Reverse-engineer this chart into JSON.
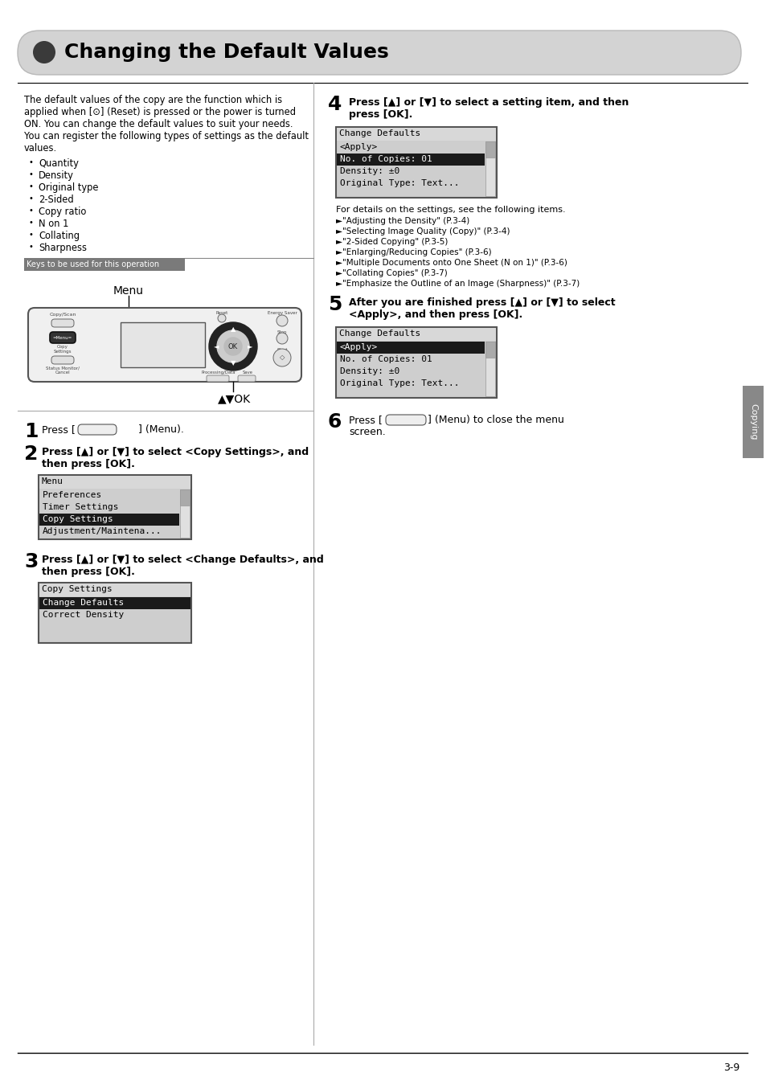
{
  "title": "Changing the Default Values",
  "bg_color": "#ffffff",
  "page_number": "3-9",
  "sidebar_label": "Copying",
  "intro_text": [
    "The default values of the copy are the function which is",
    "applied when [⊙] (Reset) is pressed or the power is turned",
    "ON. You can change the default values to suit your needs.",
    "You can register the following types of settings as the default",
    "values."
  ],
  "bullet_items": [
    "Quantity",
    "Density",
    "Original type",
    "2-Sided",
    "Copy ratio",
    "N on 1",
    "Collating",
    "Sharpness"
  ],
  "keys_label": "Keys to be used for this operation",
  "menu_screen1_title": "Menu",
  "menu_screen1_items": [
    "Preferences",
    "Timer Settings",
    "Copy Settings",
    "Adjustment/Maintena..."
  ],
  "menu_screen1_selected": 2,
  "menu_screen2_title": "Copy Settings",
  "menu_screen2_items": [
    "Change Defaults",
    "Correct Density"
  ],
  "menu_screen2_selected": 0,
  "step4_text_line1": "Press [▲] or [▼] to select a setting item, and then",
  "step4_text_line2": "press [OK].",
  "screen3_title": "Change Defaults",
  "screen3_items": [
    "<Apply>",
    "No. of Copies: 01",
    "Density: ±0",
    "Original Type: Text..."
  ],
  "screen3_selected": 1,
  "step4_note": "For details on the settings, see the following items.",
  "step4_refs": [
    "►\"Adjusting the Density\" (P.3-4)",
    "►\"Selecting Image Quality (Copy)\" (P.3-4)",
    "►\"2-Sided Copying\" (P.3-5)",
    "►\"Enlarging/Reducing Copies\" (P.3-6)",
    "►\"Multiple Documents onto One Sheet (N on 1)\" (P.3-6)",
    "►\"Collating Copies\" (P.3-7)",
    "►\"Emphasize the Outline of an Image (Sharpness)\" (P.3-7)"
  ],
  "step5_text_line1": "After you are finished press [▲] or [▼] to select",
  "step5_text_line2": "<Apply>, and then press [OK].",
  "screen4_title": "Change Defaults",
  "screen4_items": [
    "<Apply>",
    "No. of Copies: 01",
    "Density: ±0",
    "Original Type: Text..."
  ],
  "screen4_selected": 0
}
